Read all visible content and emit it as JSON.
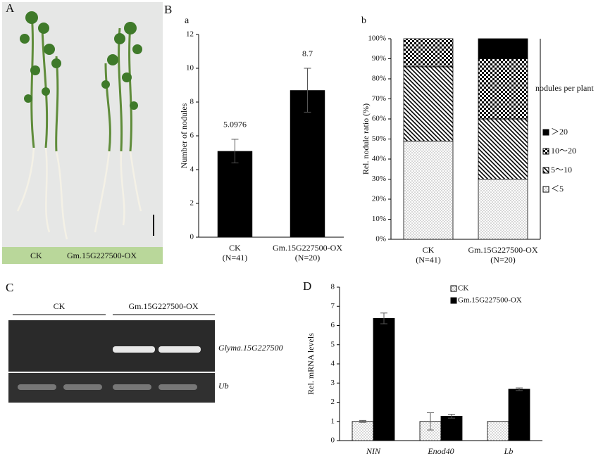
{
  "panels": {
    "A": "A",
    "B": "B",
    "C": "C",
    "D": "D"
  },
  "photo": {
    "labels": [
      "CK",
      "Gm.15G227500-OX"
    ]
  },
  "gel": {
    "groups": [
      "CK",
      "Gm.15G227500-OX"
    ],
    "bands": [
      "Glyma.15G227500",
      "Ub"
    ]
  },
  "chart_data": [
    {
      "type": "bar",
      "title": "a",
      "y_label": "Number of nodules",
      "categories": [
        "CK",
        "Gm.15G227500-OX"
      ],
      "category_notes": [
        "(N=41)",
        "(N=20)"
      ],
      "values": [
        5.0976,
        8.7
      ],
      "errors": [
        0.7,
        1.3
      ],
      "color": "#000000",
      "ylim": [
        0,
        12
      ],
      "yticks": [
        0,
        2,
        4,
        6,
        8,
        10,
        12
      ]
    },
    {
      "type": "stacked_bar",
      "title": "b",
      "y_label": "Rel. nodule ratio (%)",
      "categories": [
        "CK",
        "Gm.15G227500-OX"
      ],
      "category_notes": [
        "(N=41)",
        "(N=20)"
      ],
      "legend_title": "nodules per plant",
      "frame": true,
      "series": [
        {
          "name": "＜5",
          "color": "#000000",
          "pattern": "dots",
          "values": [
            49,
            30
          ]
        },
        {
          "name": "5～10",
          "color": "#000000",
          "pattern": "hatch",
          "values": [
            37,
            30
          ]
        },
        {
          "name": "10～20",
          "color": "#000000",
          "pattern": "check",
          "values": [
            14,
            30
          ]
        },
        {
          "name": "＞20",
          "color": "#000000",
          "pattern": "solid",
          "values": [
            0,
            10
          ]
        }
      ],
      "ylim": [
        0,
        100
      ],
      "yticks": [
        {
          "value": 0,
          "label": "0%"
        },
        {
          "value": 10,
          "label": "10%"
        },
        {
          "value": 20,
          "label": "20%"
        },
        {
          "value": 30,
          "label": "30%"
        },
        {
          "value": 40,
          "label": "40%"
        },
        {
          "value": 50,
          "label": "50%"
        },
        {
          "value": 60,
          "label": "60%"
        },
        {
          "value": 70,
          "label": "70%"
        },
        {
          "value": 80,
          "label": "80%"
        },
        {
          "value": 90,
          "label": "90%"
        },
        {
          "value": 100,
          "label": "100%"
        }
      ]
    },
    {
      "type": "grouped_bar",
      "y_label": "Rel. mRNA levels",
      "categories": [
        "NIN",
        "Enod40",
        "Lb"
      ],
      "series": [
        {
          "name": "CK",
          "color": "#000000",
          "pattern": "dots",
          "values": [
            1,
            1,
            1
          ],
          "errors": [
            0.05,
            0.45,
            0
          ]
        },
        {
          "name": "Gm.15G227500-OX",
          "color": "#000000",
          "pattern": "solid",
          "values": [
            6.37,
            1.27,
            2.68
          ],
          "errors": [
            0.28,
            0.1,
            0.07
          ]
        }
      ],
      "ylim": [
        0,
        8
      ],
      "yticks": [
        0,
        1,
        2,
        3,
        4,
        5,
        6,
        7,
        8
      ]
    }
  ]
}
